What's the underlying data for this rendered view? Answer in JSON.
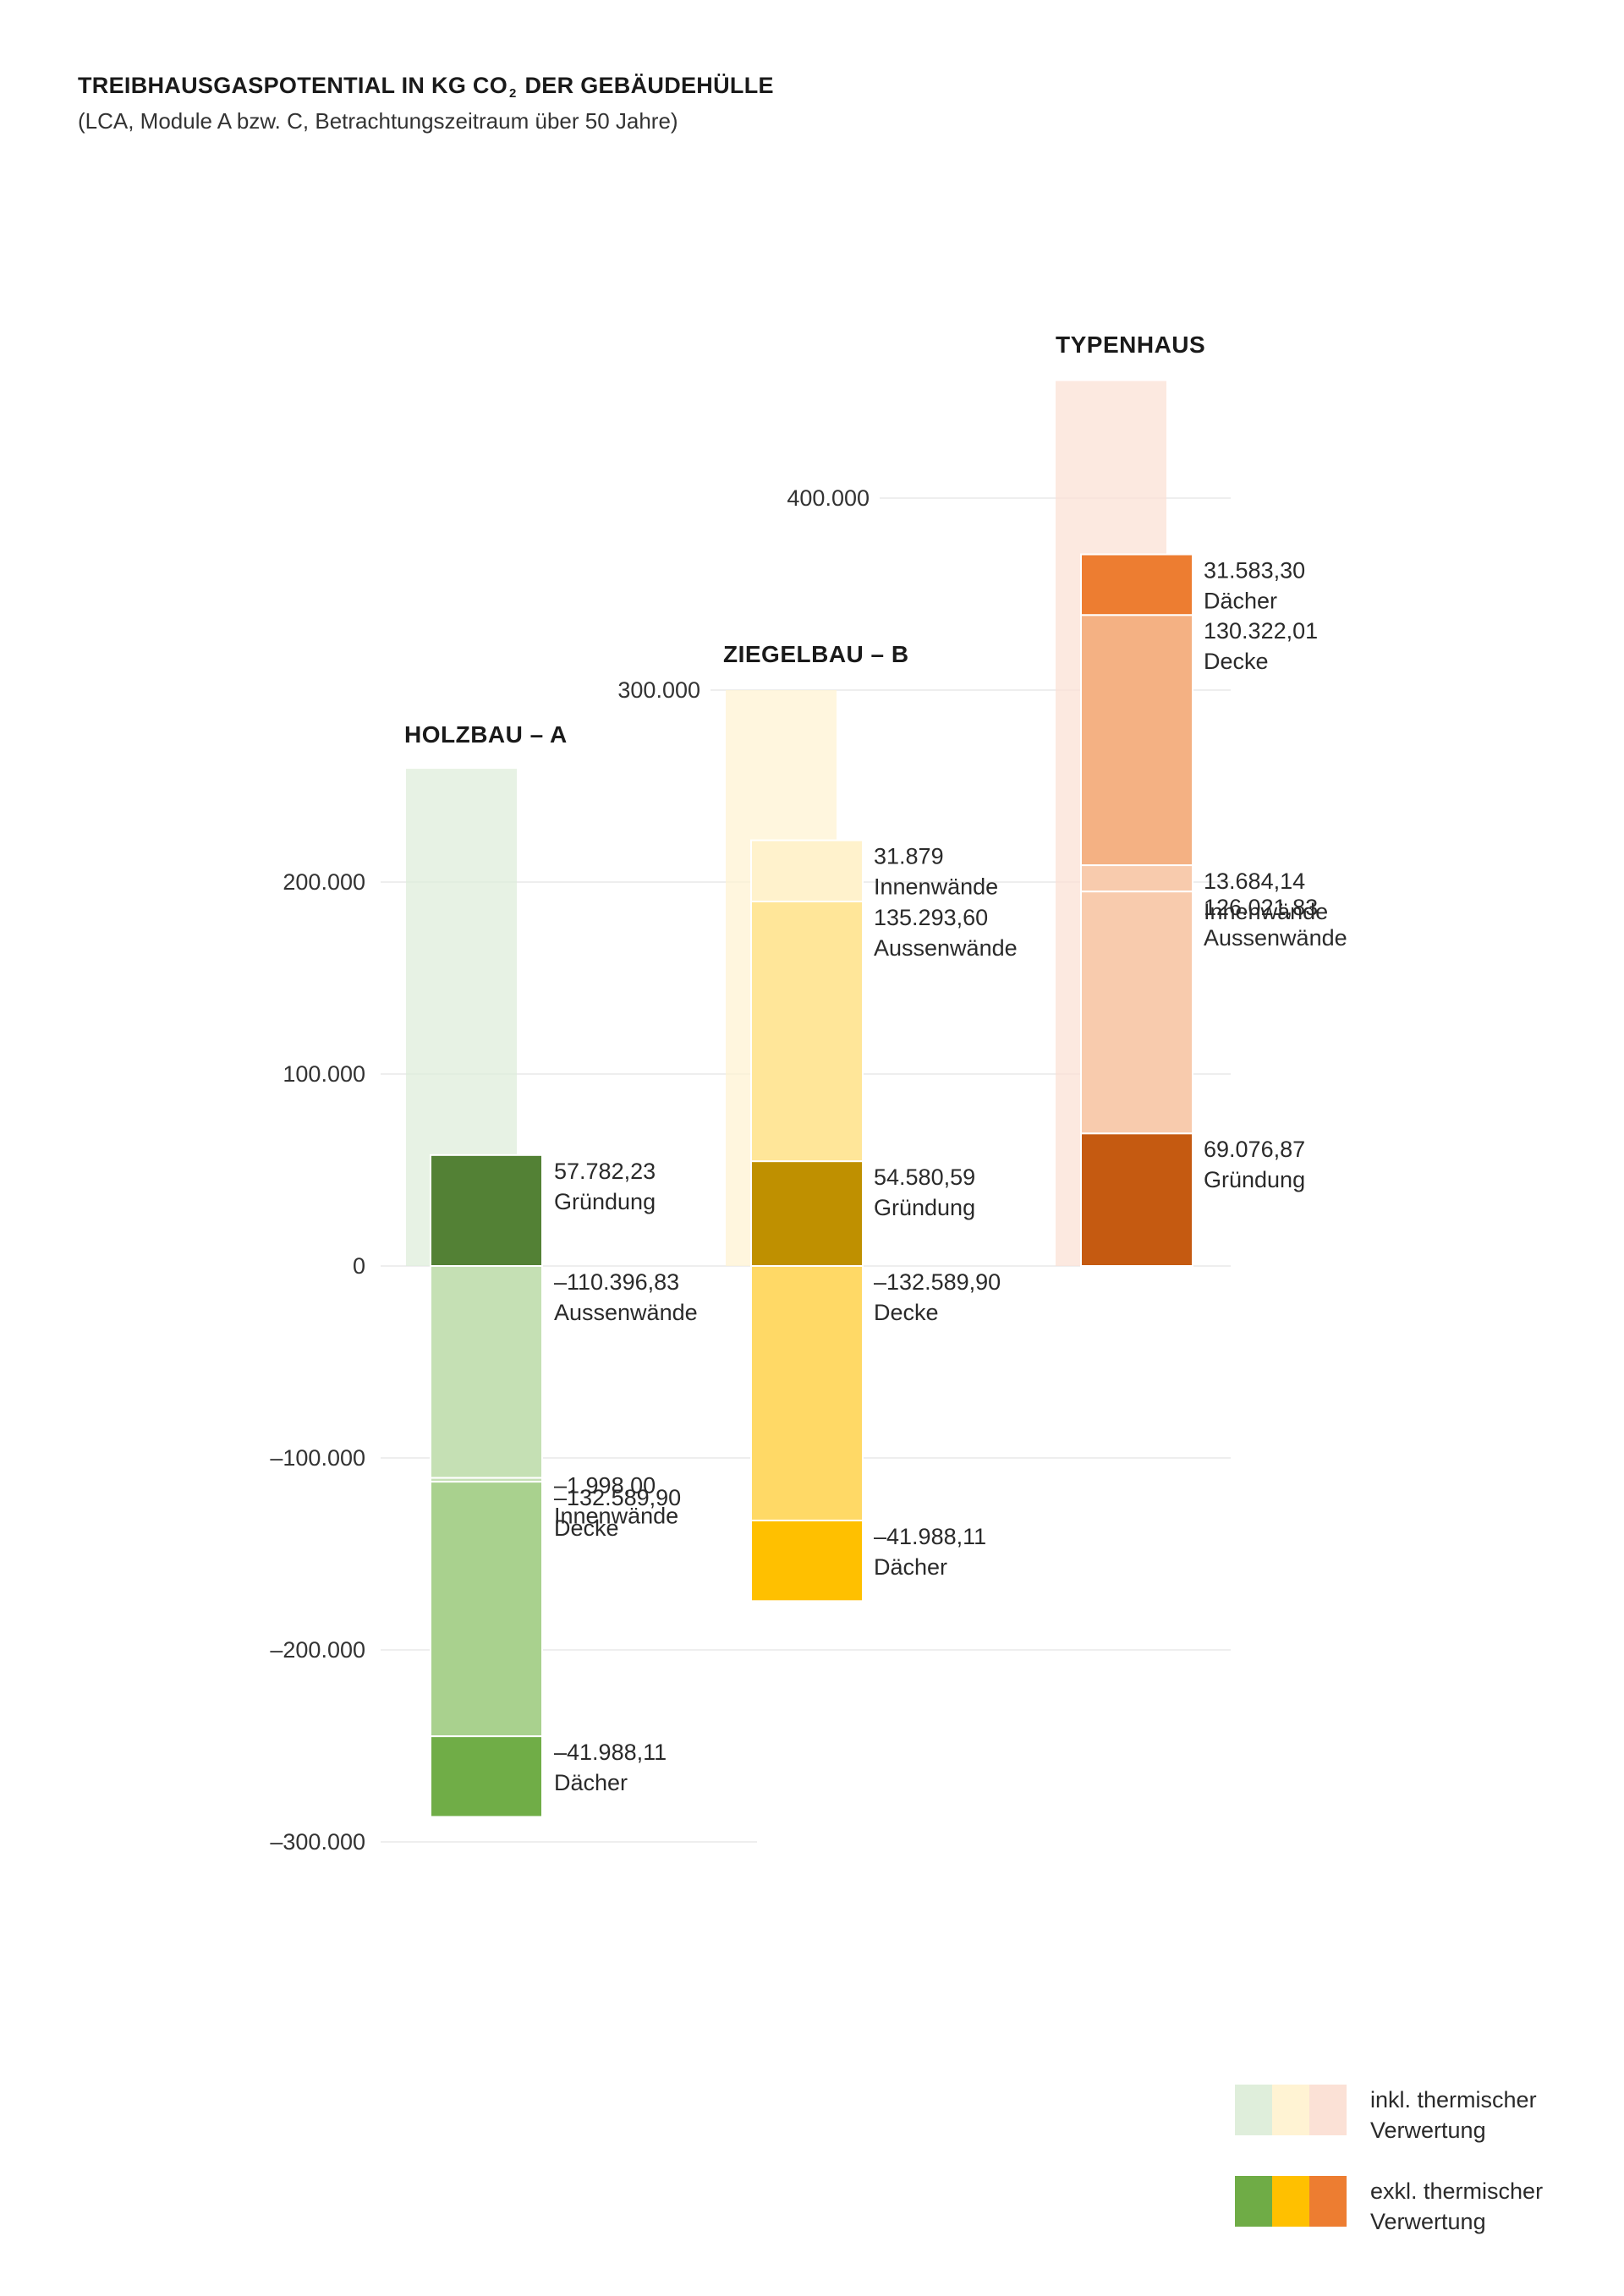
{
  "title": {
    "main": "TREIBHAUSGASPOTENTIAL IN KG CO",
    "sub": "2",
    "rest": " DER GEBÄUDEHÜLLE"
  },
  "subtitle": "(LCA, Module A bzw. C, Betrachtungszeitraum über 50 Jahre)",
  "chart_data": {
    "type": "bar",
    "title": "TREIBHAUSGASPOTENTIAL IN KG CO2 DER GEBÄUDEHÜLLE",
    "subtitle": "(LCA, Module A bzw. C, Betrachtungszeitraum über 50 Jahre)",
    "ylim": [
      -300000,
      460000
    ],
    "y_ticks": [
      {
        "value": 400000,
        "label": "400.000"
      },
      {
        "value": 300000,
        "label": "300.000"
      },
      {
        "value": 200000,
        "label": "200.000"
      },
      {
        "value": 100000,
        "label": "100.000"
      },
      {
        "value": 0,
        "label": "0"
      },
      {
        "value": -100000,
        "label": "–100.000"
      },
      {
        "value": -200000,
        "label": "–200.000"
      },
      {
        "value": -300000,
        "label": "–300.000"
      }
    ],
    "grid": true,
    "legend_position": "bottom-right",
    "legend": [
      {
        "label_line1": "inkl. thermischer",
        "label_line2": "Verwertung",
        "colors": [
          "#dfeedb",
          "#fff3d3",
          "#fbe1d6"
        ]
      },
      {
        "label_line1": "exkl. thermischer",
        "label_line2": "Verwertung",
        "colors": [
          "#6fac46",
          "#ffc000",
          "#ed7d31"
        ]
      }
    ],
    "groups": [
      {
        "name": "HOLZBAU – A",
        "colors": {
          "Gründung": "#538135",
          "Aussenwände": "#c5e0b4",
          "Innenwände": "#c5e0b4",
          "Decke": "#a9d18e",
          "Dächer": "#70ad47"
        },
        "ghost_color": "#dfeedb",
        "ghost_total": 259000,
        "segments": [
          {
            "name": "Gründung",
            "value": 57782.23,
            "label": "57.782,23"
          },
          {
            "name": "Aussenwände",
            "value": -110396.83,
            "label": "–110.396,83"
          },
          {
            "name": "Innenwände",
            "value": -1998.0,
            "label": "–1.998,00"
          },
          {
            "name": "Decke",
            "value": -132589.9,
            "label": "–132.589,90"
          },
          {
            "name": "Dächer",
            "value": -41988.11,
            "label": "–41.988,11"
          }
        ]
      },
      {
        "name": "ZIEGELBAU – B",
        "colors": {
          "Gründung": "#bf9000",
          "Aussenwände": "#ffe699",
          "Innenwände": "#fff2cc",
          "Decke": "#ffd966",
          "Dächer": "#ffc000"
        },
        "ghost_color": "#fff3d3",
        "ghost_total": 300000,
        "segments": [
          {
            "name": "Gründung",
            "value": 54580.59,
            "label": "54.580,59"
          },
          {
            "name": "Aussenwände",
            "value": 135293.6,
            "label": "135.293,60"
          },
          {
            "name": "Innenwände",
            "value": 31879,
            "label": "31.879"
          },
          {
            "name": "Decke",
            "value": -132589.9,
            "label": "–132.589,90"
          },
          {
            "name": "Dächer",
            "value": -41988.11,
            "label": "–41.988,11"
          }
        ]
      },
      {
        "name": "TYPENHAUS",
        "colors": {
          "Gründung": "#c55a11",
          "Aussenwände": "#f8cbad",
          "Innenwände": "#f8cbad",
          "Decke": "#f4b183",
          "Dächer": "#ed7d31"
        },
        "ghost_color": "#fbe1d6",
        "ghost_total": 461000,
        "segments": [
          {
            "name": "Gründung",
            "value": 69076.87,
            "label": "69.076,87"
          },
          {
            "name": "Aussenwände",
            "value": 126021.83,
            "label": "126.021,83"
          },
          {
            "name": "Innenwände",
            "value": 13684.14,
            "label": "13.684,14"
          },
          {
            "name": "Decke",
            "value": 130322.01,
            "label": "130.322,01"
          },
          {
            "name": "Dächer",
            "value": 31583.3,
            "label": "31.583,30"
          }
        ]
      }
    ]
  }
}
